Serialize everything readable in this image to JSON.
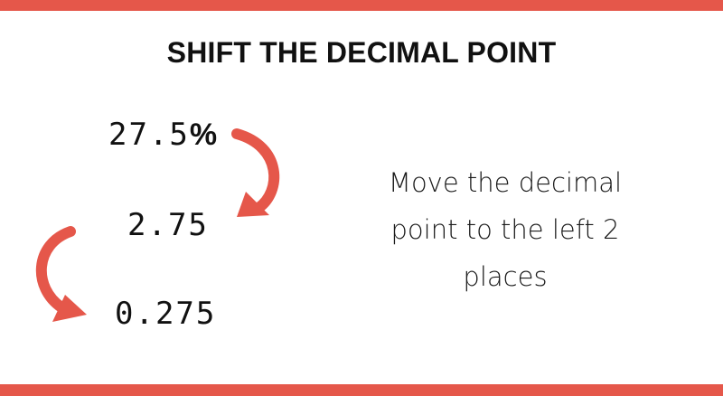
{
  "title": "SHIFT THE DECIMAL POINT",
  "steps": {
    "first_number": "27.5",
    "first_suffix": "%",
    "second": "2.75",
    "third": "0.275"
  },
  "explanation": {
    "line1": "Move the decimal",
    "line2": "point to the left 2",
    "line3": "places"
  },
  "colors": {
    "accent": "#e5574a",
    "text": "#111111",
    "background": "#ffffff"
  },
  "icons": [
    "curved-arrow-down-right-icon",
    "curved-arrow-down-left-icon"
  ]
}
